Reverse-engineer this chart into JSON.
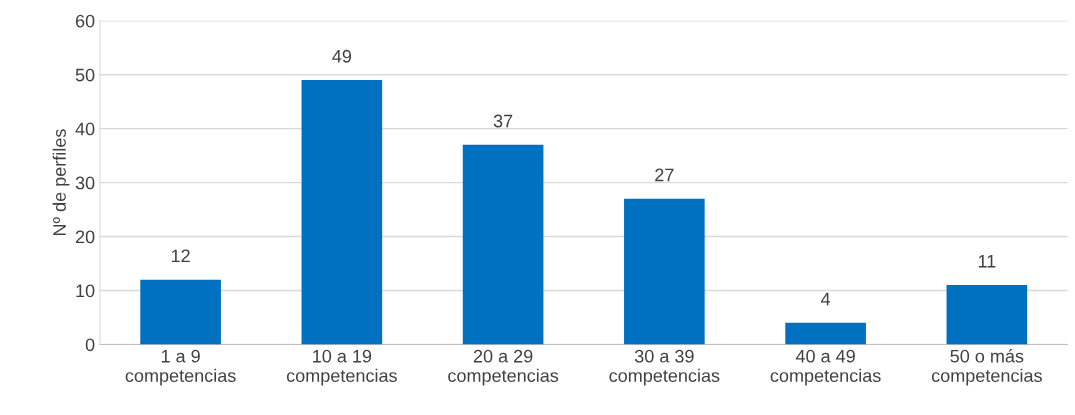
{
  "chart_data": {
    "type": "bar",
    "ylabel": "Nº de perfiles",
    "categories": [
      "1 a 9\ncompetencias",
      "10 a 19\ncompetencias",
      "20 a 29\ncompetencias",
      "30 a 39\ncompetencias",
      "40 a 49\ncompetencias",
      "50 o más\ncompetencias"
    ],
    "values": [
      12,
      49,
      37,
      27,
      4,
      11
    ],
    "color": "#0070c0",
    "ylim": [
      0,
      60
    ],
    "yticks": [
      0,
      10,
      20,
      30,
      40,
      50,
      60
    ],
    "grid": "y",
    "data_labels": true
  }
}
